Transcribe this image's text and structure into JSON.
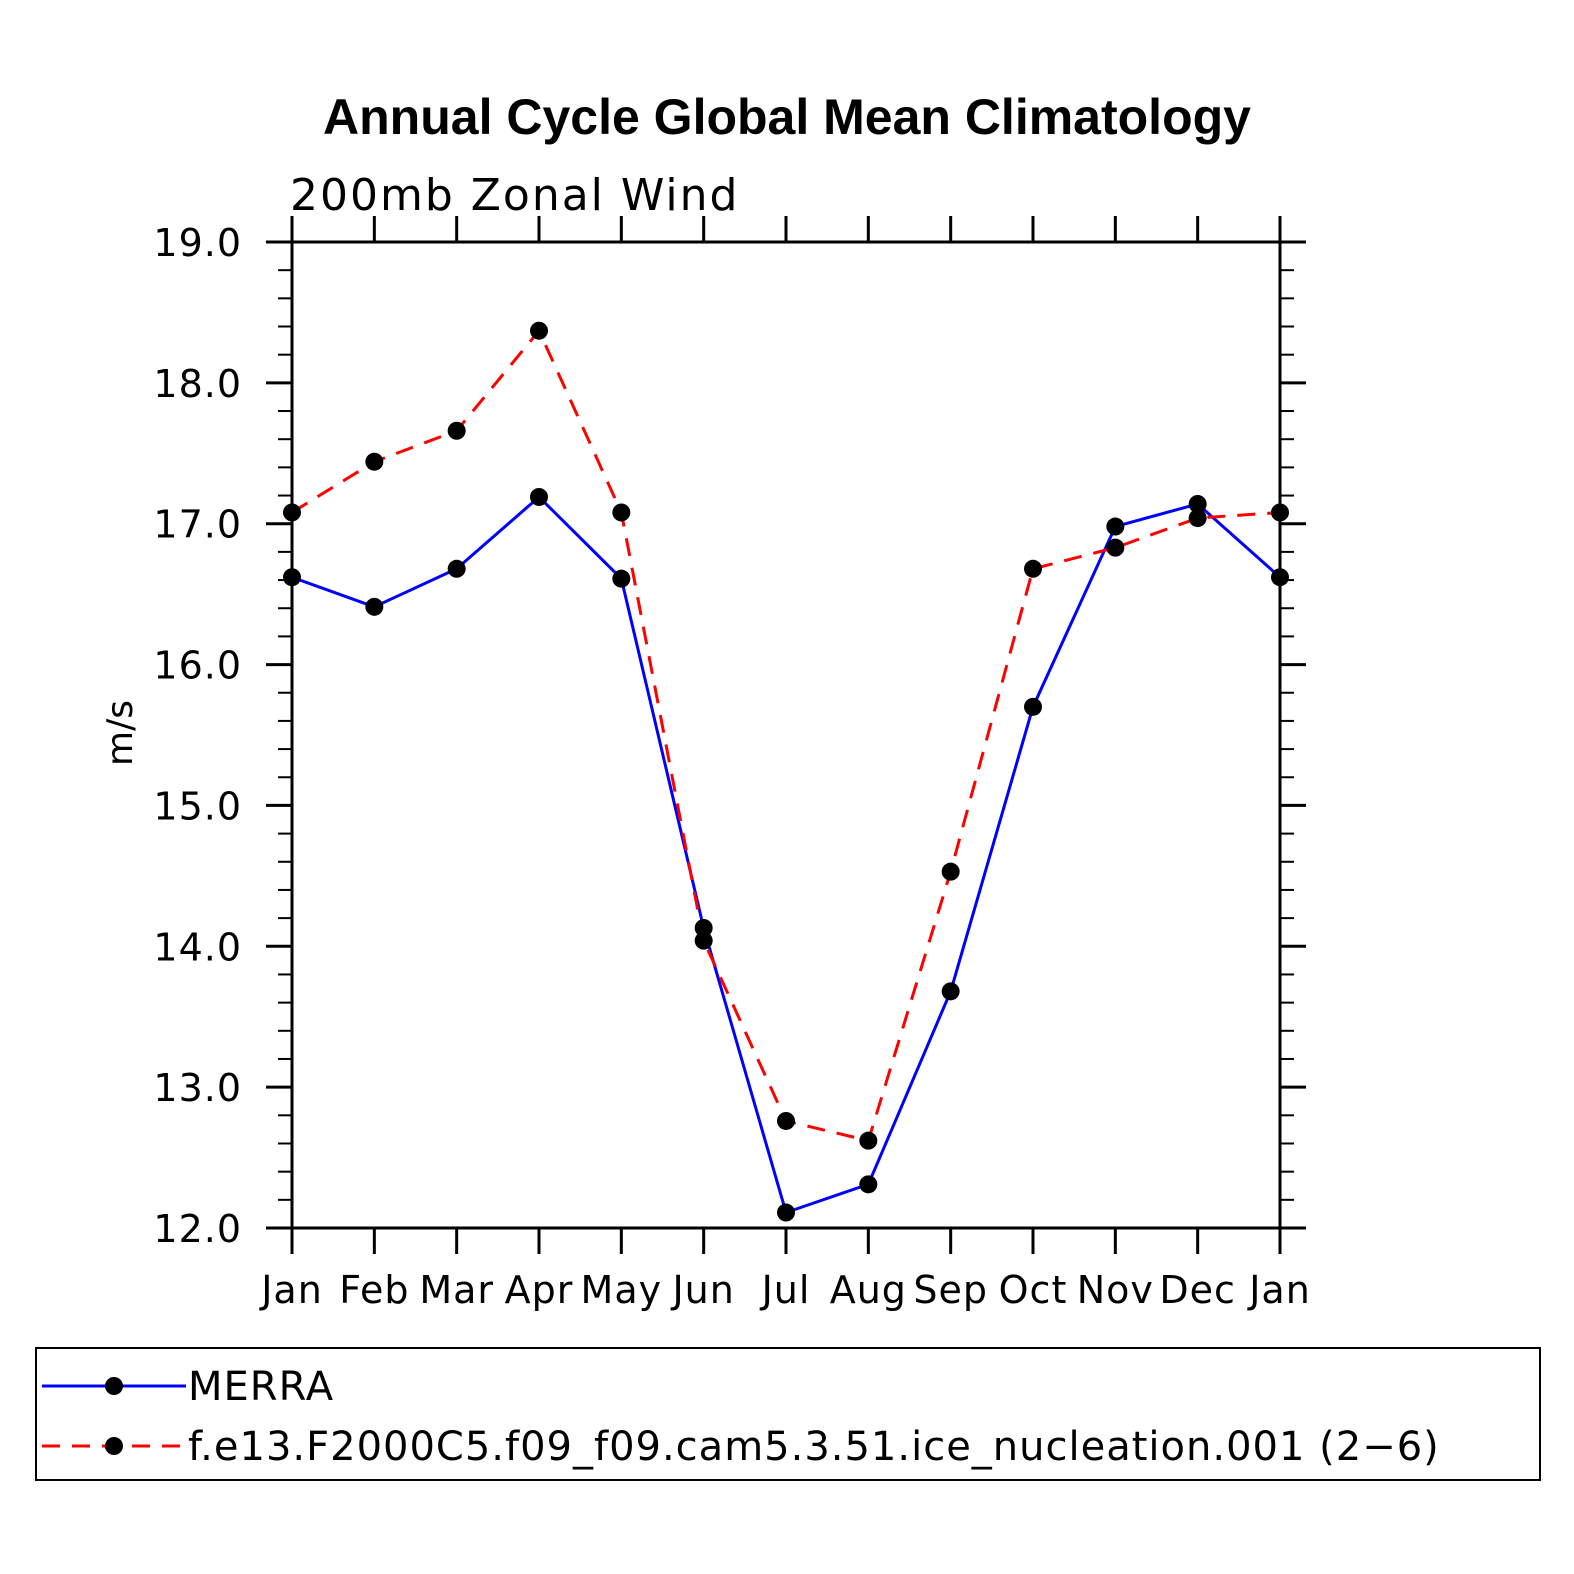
{
  "colors": {
    "series_merra": "#0000ff",
    "series_model": "#ff0000",
    "marker": "#000000",
    "axis": "#000000"
  },
  "chart_data": {
    "type": "line",
    "title": "Annual Cycle Global Mean Climatology",
    "subtitle": "200mb Zonal Wind",
    "xlabel": "",
    "ylabel": "m/s",
    "ylim": [
      12.0,
      19.0
    ],
    "yticks": [
      "19.0",
      "18.0",
      "17.0",
      "16.0",
      "15.0",
      "14.0",
      "13.0",
      "12.0"
    ],
    "ytick_values": [
      19.0,
      18.0,
      17.0,
      16.0,
      15.0,
      14.0,
      13.0,
      12.0
    ],
    "categories": [
      "Jan",
      "Feb",
      "Mar",
      "Apr",
      "May",
      "Jun",
      "Jul",
      "Aug",
      "Sep",
      "Oct",
      "Nov",
      "Dec",
      "Jan"
    ],
    "legend_position": "bottom",
    "series": [
      {
        "name": "MERRA",
        "style": "solid",
        "values": [
          16.62,
          16.41,
          16.68,
          17.19,
          16.61,
          14.13,
          12.11,
          12.31,
          13.68,
          15.7,
          16.98,
          17.14,
          16.62
        ]
      },
      {
        "name": "f.e13.F2000C5.f09_f09.cam5.3.51.ice_nucleation.001 (2−6)",
        "style": "dashed",
        "values": [
          17.08,
          17.44,
          17.66,
          18.37,
          17.08,
          14.04,
          12.76,
          12.62,
          14.53,
          16.68,
          16.83,
          17.04,
          17.08
        ]
      }
    ]
  }
}
